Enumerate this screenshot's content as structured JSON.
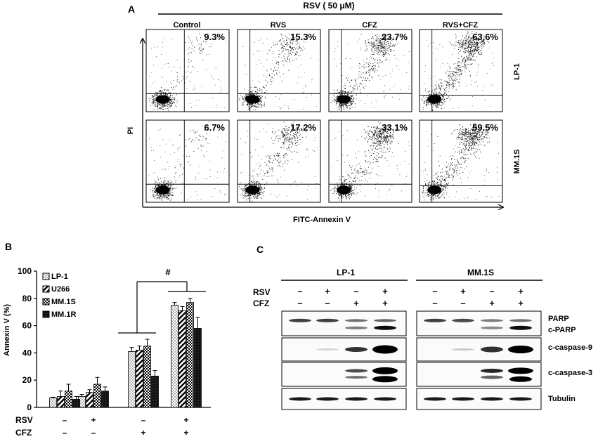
{
  "panel_a": {
    "label": "A",
    "treatment_header": "RSV ( 50 μM)",
    "columns": [
      "Control",
      "RVS",
      "CFZ",
      "RVS+CFZ"
    ],
    "rows": [
      "LP-1",
      "MM.1S"
    ],
    "percentages": [
      [
        "9.3%",
        "15.3%",
        "23.7%",
        "63.6%"
      ],
      [
        "6.7%",
        "17.2%",
        "33.1%",
        "59.5%"
      ]
    ],
    "y_axis_label": "PI",
    "x_axis_label": "FITC-Annexin V"
  },
  "panel_b": {
    "label": "B",
    "legend": [
      "LP-1",
      "U266",
      "MM.1S",
      "MM.1R"
    ],
    "significance": "#",
    "treatment_rows": [
      {
        "name": "RSV",
        "signs": [
          "–",
          "+",
          "–",
          "+"
        ]
      },
      {
        "name": "CFZ",
        "signs": [
          "–",
          "–",
          "+",
          "+"
        ]
      }
    ]
  },
  "panel_c": {
    "label": "C",
    "cell_lines": [
      "LP-1",
      "MM.1S"
    ],
    "treatment_rows": [
      {
        "name": "RSV",
        "signs": [
          "–",
          "+",
          "–",
          "+"
        ]
      },
      {
        "name": "CFZ",
        "signs": [
          "–",
          "–",
          "+",
          "+"
        ]
      }
    ],
    "blots": [
      {
        "labels": [
          "PARP",
          "c-PARP"
        ]
      },
      {
        "labels": [
          "c-caspase-9"
        ]
      },
      {
        "labels": [
          "c-caspase-3"
        ]
      },
      {
        "labels": [
          "Tubulin"
        ]
      }
    ]
  },
  "chart_data": {
    "type": "bar",
    "categories": [
      "RSV– CFZ–",
      "RSV+ CFZ–",
      "RSV– CFZ+",
      "RSV+ CFZ+"
    ],
    "ylabel": "Annexin V (%)",
    "ylim": [
      0,
      100
    ],
    "yticks": [
      0,
      20,
      40,
      60,
      80,
      100
    ],
    "legend_position": "top-left",
    "series": [
      {
        "name": "LP-1",
        "values": [
          7,
          8,
          41,
          75
        ],
        "errors": [
          0.5,
          1.5,
          3,
          2
        ]
      },
      {
        "name": "U266",
        "values": [
          8,
          11,
          42,
          71
        ],
        "errors": [
          4,
          2,
          3,
          3
        ]
      },
      {
        "name": "MM.1S",
        "values": [
          12,
          17,
          45,
          77
        ],
        "errors": [
          5,
          5,
          5,
          3
        ]
      },
      {
        "name": "MM.1R",
        "values": [
          6,
          12,
          23,
          58
        ],
        "errors": [
          2,
          3,
          4,
          8
        ]
      }
    ],
    "series_fills": [
      "#ffffff",
      "#ffffff",
      "#ffffff",
      "#111111"
    ]
  }
}
